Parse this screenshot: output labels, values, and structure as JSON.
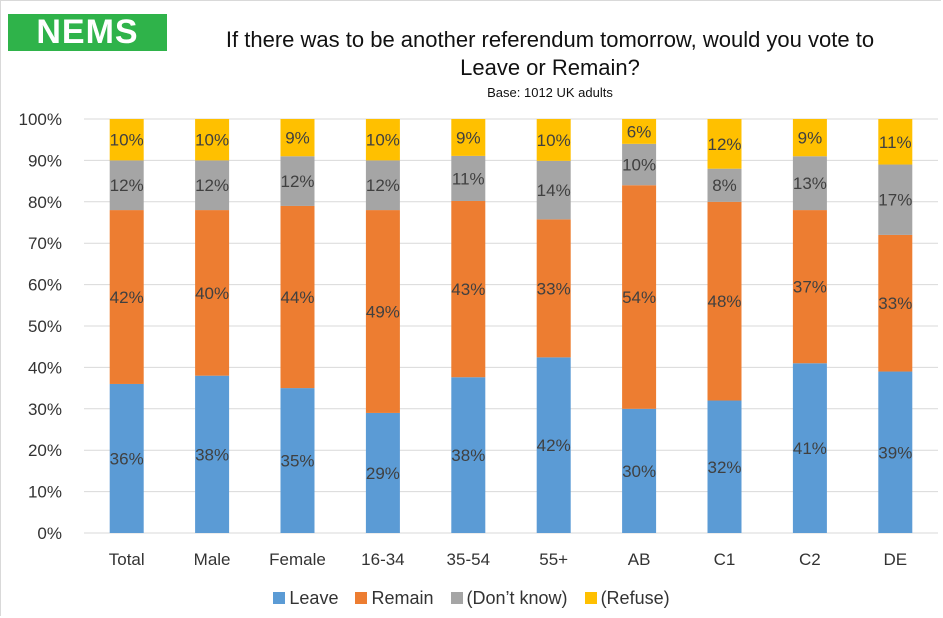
{
  "logo": "NEMS",
  "header": {
    "title_line1": "If there was to be another referendum tomorrow, would you vote to",
    "title_line2": "Leave or Remain?",
    "subtitle": "Base: 1012 UK adults"
  },
  "colors": {
    "logo": "#2fb34a",
    "leave": "#5b9bd5",
    "remain": "#ed7d31",
    "dont_know": "#a5a5a5",
    "refuse": "#ffc000",
    "grid": "#d9d9d9",
    "text": "#333333"
  },
  "chart_data": {
    "type": "bar",
    "stacked": true,
    "percent_stacked": true,
    "categories": [
      "Total",
      "Male",
      "Female",
      "16-34",
      "35-54",
      "55+",
      "AB",
      "C1",
      "C2",
      "DE"
    ],
    "series": [
      {
        "name": "Leave",
        "values": [
          36,
          38,
          35,
          29,
          38,
          42,
          30,
          32,
          41,
          39
        ]
      },
      {
        "name": "Remain",
        "values": [
          42,
          40,
          44,
          49,
          43,
          33,
          54,
          48,
          37,
          33
        ]
      },
      {
        "name": "(Don't know)",
        "values": [
          12,
          12,
          12,
          12,
          11,
          14,
          10,
          8,
          13,
          17
        ]
      },
      {
        "name": "(Refuse)",
        "values": [
          10,
          10,
          9,
          10,
          9,
          10,
          6,
          12,
          9,
          11
        ]
      }
    ],
    "ylim": [
      0,
      100
    ],
    "yticks": [
      "0%",
      "10%",
      "20%",
      "30%",
      "40%",
      "50%",
      "60%",
      "70%",
      "80%",
      "90%",
      "100%"
    ],
    "grid": true,
    "legend_position": "bottom",
    "legend": [
      "Leave",
      "Remain",
      "(Don’t know)",
      "(Refuse)"
    ]
  }
}
